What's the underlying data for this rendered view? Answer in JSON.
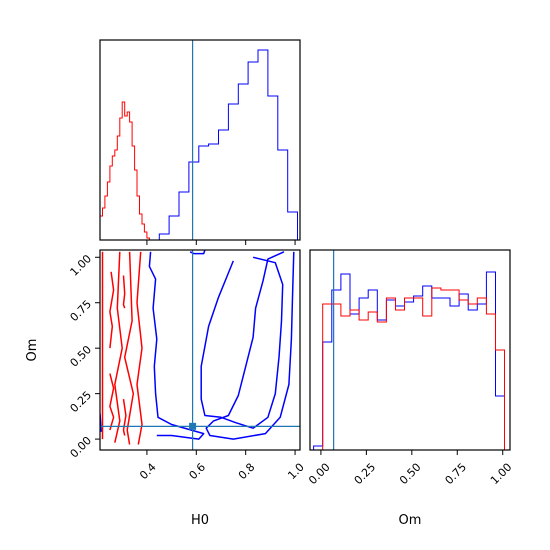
{
  "chart_data": [
    {
      "type": "histogram",
      "panel": "H0 marginal",
      "x_range": [
        0.21,
        1.02
      ],
      "show_y_ticks": false,
      "truth_line": {
        "value": 0.585,
        "color": "#1f77b4"
      },
      "series": [
        {
          "color": "#0000ff",
          "bin_edges": [
            0.21,
            0.25,
            0.29,
            0.33,
            0.37,
            0.41,
            0.45,
            0.49,
            0.53,
            0.57,
            0.61,
            0.65,
            0.69,
            0.73,
            0.77,
            0.81,
            0.85,
            0.89,
            0.93,
            0.97,
            1.01
          ],
          "counts": [
            0,
            0,
            0,
            0,
            0,
            0,
            0.03,
            0.12,
            0.24,
            0.39,
            0.47,
            0.48,
            0.55,
            0.68,
            0.78,
            0.89,
            0.95,
            0.72,
            0.45,
            0.14
          ]
        },
        {
          "color": "#ff0000",
          "bin_edges": [
            0.21,
            0.22,
            0.23,
            0.24,
            0.25,
            0.26,
            0.27,
            0.28,
            0.29,
            0.3,
            0.31,
            0.32,
            0.33,
            0.34,
            0.35,
            0.36,
            0.37,
            0.38,
            0.39,
            0.4,
            0.41
          ],
          "counts": [
            0.12,
            0.16,
            0.22,
            0.29,
            0.37,
            0.42,
            0.45,
            0.52,
            0.61,
            0.69,
            0.62,
            0.64,
            0.59,
            0.47,
            0.35,
            0.22,
            0.13,
            0.08,
            0.04,
            0.01
          ]
        }
      ]
    },
    {
      "type": "contour",
      "panel": "Om vs H0",
      "x_label": "H0",
      "y_label": "Om",
      "x_range": [
        0.21,
        1.02
      ],
      "y_range": [
        -0.06,
        1.04
      ],
      "x_ticks": [
        0.4,
        0.6,
        0.8,
        1.0
      ],
      "x_tick_labels": [
        "0.4",
        "0.6",
        "0.8",
        "1.0"
      ],
      "y_ticks": [
        0.0,
        0.25,
        0.5,
        0.75,
        1.0
      ],
      "y_tick_labels": [
        "0.00",
        "0.25",
        "0.50",
        "0.75",
        "1.00"
      ],
      "truth_point": {
        "x": 0.585,
        "y": 0.07,
        "color": "#1f77b4"
      },
      "blue_contours": [
        [
          [
            0.955,
            1.03
          ],
          [
            0.89,
            0.99
          ],
          [
            0.87,
            0.87
          ],
          [
            0.84,
            0.72
          ],
          [
            0.83,
            0.56
          ],
          [
            0.8,
            0.4
          ],
          [
            0.77,
            0.24
          ],
          [
            0.73,
            0.13
          ],
          [
            0.67,
            0.1
          ],
          [
            0.64,
            0.06
          ],
          [
            0.655,
            0.02
          ],
          [
            0.75,
            0.0
          ],
          [
            0.88,
            0.03
          ],
          [
            0.94,
            0.12
          ],
          [
            0.975,
            0.3
          ],
          [
            0.985,
            0.55
          ],
          [
            0.99,
            0.8
          ],
          [
            0.995,
            1.03
          ]
        ],
        [
          [
            0.75,
            0.98
          ],
          [
            0.72,
            0.88
          ],
          [
            0.69,
            0.78
          ],
          [
            0.65,
            0.62
          ],
          [
            0.62,
            0.4
          ],
          [
            0.62,
            0.22
          ],
          [
            0.635,
            0.13
          ],
          [
            0.7,
            0.12
          ],
          [
            0.76,
            0.09
          ],
          [
            0.83,
            0.06
          ],
          [
            0.89,
            0.12
          ],
          [
            0.92,
            0.25
          ],
          [
            0.935,
            0.45
          ],
          [
            0.945,
            0.65
          ],
          [
            0.95,
            0.85
          ],
          [
            0.92,
            0.97
          ],
          [
            0.83,
            1.0
          ]
        ],
        [
          [
            0.415,
            1.03
          ],
          [
            0.41,
            0.95
          ],
          [
            0.435,
            0.88
          ],
          [
            0.425,
            0.72
          ],
          [
            0.44,
            0.55
          ],
          [
            0.43,
            0.4
          ],
          [
            0.435,
            0.25
          ],
          [
            0.445,
            0.12
          ],
          [
            0.5,
            0.08
          ],
          [
            0.63,
            0.03
          ],
          [
            0.61,
            0.0
          ],
          [
            0.5,
            0.02
          ],
          [
            0.44,
            0.02
          ]
        ],
        [
          [
            0.575,
            1.03
          ],
          [
            0.59,
            1.02
          ],
          [
            0.63,
            1.02
          ],
          [
            0.635,
            1.04
          ]
        ],
        [
          [
            0.21,
            0.14
          ],
          [
            0.215,
            0.04
          ]
        ]
      ],
      "red_contours": [
        [
          [
            0.22,
            1.03
          ],
          [
            0.22,
            0.0
          ]
        ],
        [
          [
            0.29,
            1.03
          ],
          [
            0.28,
            0.72
          ],
          [
            0.3,
            0.5
          ],
          [
            0.27,
            0.3
          ],
          [
            0.29,
            0.1
          ],
          [
            0.27,
            -0.02
          ]
        ],
        [
          [
            0.33,
            1.03
          ],
          [
            0.34,
            0.65
          ],
          [
            0.31,
            0.45
          ],
          [
            0.345,
            0.25
          ],
          [
            0.32,
            0.05
          ],
          [
            0.33,
            -0.03
          ]
        ],
        [
          [
            0.375,
            1.03
          ],
          [
            0.36,
            0.75
          ],
          [
            0.38,
            0.5
          ],
          [
            0.36,
            0.3
          ],
          [
            0.38,
            0.08
          ],
          [
            0.365,
            -0.03
          ]
        ],
        [
          [
            0.255,
            0.92
          ],
          [
            0.265,
            0.82
          ],
          [
            0.25,
            0.7
          ],
          [
            0.26,
            0.62
          ],
          [
            0.25,
            0.5
          ]
        ],
        [
          [
            0.25,
            0.36
          ],
          [
            0.265,
            0.28
          ],
          [
            0.25,
            0.18
          ],
          [
            0.265,
            0.12
          ],
          [
            0.25,
            0.05
          ]
        ],
        [
          [
            0.305,
            0.9
          ],
          [
            0.31,
            0.8
          ],
          [
            0.305,
            0.74
          ],
          [
            0.31,
            0.72
          ]
        ],
        [
          [
            0.305,
            0.22
          ],
          [
            0.315,
            0.13
          ],
          [
            0.305,
            0.05
          ],
          [
            0.31,
            0.02
          ]
        ]
      ]
    },
    {
      "type": "histogram",
      "panel": "Om marginal",
      "x_label": "Om",
      "x_range": [
        -0.06,
        1.04
      ],
      "x_ticks": [
        0.0,
        0.25,
        0.5,
        0.75,
        1.0
      ],
      "x_tick_labels": [
        "0.00",
        "0.25",
        "0.50",
        "0.75",
        "1.00"
      ],
      "show_y_ticks": false,
      "truth_line": {
        "value": 0.07,
        "color": "#1f77b4"
      },
      "series": [
        {
          "color": "#0000ff",
          "bin_edges": [
            -0.04,
            0.01,
            0.06,
            0.11,
            0.16,
            0.21,
            0.26,
            0.31,
            0.36,
            0.41,
            0.46,
            0.51,
            0.56,
            0.61,
            0.66,
            0.71,
            0.76,
            0.81,
            0.86,
            0.91,
            0.96,
            1.01
          ],
          "counts": [
            0.02,
            0.54,
            0.8,
            0.88,
            0.68,
            0.76,
            0.8,
            0.65,
            0.75,
            0.72,
            0.74,
            0.77,
            0.82,
            0.76,
            0.76,
            0.72,
            0.78,
            0.7,
            0.73,
            0.89,
            0.27
          ]
        },
        {
          "color": "#ff0000",
          "bin_edges": [
            0.01,
            0.06,
            0.11,
            0.16,
            0.21,
            0.26,
            0.31,
            0.36,
            0.41,
            0.46,
            0.51,
            0.56,
            0.61,
            0.66,
            0.71,
            0.76,
            0.81,
            0.86,
            0.91,
            0.96,
            1.01
          ],
          "counts": [
            0.73,
            0.73,
            0.67,
            0.7,
            0.65,
            0.69,
            0.64,
            0.76,
            0.7,
            0.76,
            0.76,
            0.67,
            0.81,
            0.8,
            0.8,
            0.75,
            0.73,
            0.76,
            0.68,
            0.5
          ]
        }
      ]
    }
  ]
}
